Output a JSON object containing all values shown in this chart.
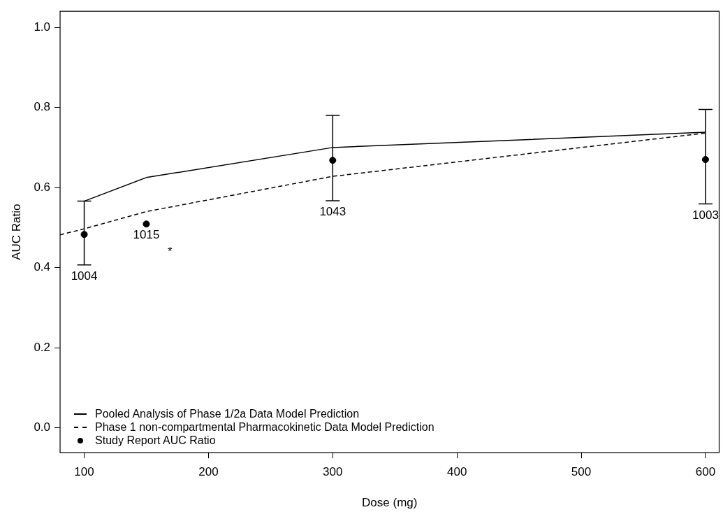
{
  "chart_data": {
    "type": "line",
    "xlabel": "Dose (mg)",
    "ylabel": "AUC Ratio",
    "xlim": [
      80.6,
      611
    ],
    "xticks": [
      100,
      200,
      300,
      400,
      500,
      600
    ],
    "ylim": [
      -0.062,
      1.04
    ],
    "yticks": [
      {
        "value": 0,
        "label": "0.0"
      },
      {
        "value": 0.2,
        "label": "0.2"
      },
      {
        "value": 0.4,
        "label": "0.4"
      },
      {
        "value": 0.6,
        "label": "0.6"
      },
      {
        "value": 0.8,
        "label": "0.8"
      },
      {
        "value": 1,
        "label": "1.0"
      }
    ],
    "grid": false,
    "legend": "bottom left",
    "series": [
      {
        "name": "Pooled Analysis of Phase 1/2a Data Model Prediction",
        "color": "#000000",
        "line_style": "solid",
        "marker": "none",
        "x": [
          100,
          150,
          300,
          600
        ],
        "values": [
          0.566,
          0.625,
          0.7,
          0.738
        ]
      },
      {
        "name": "Phase 1 non-compartmental Pharmacokinetic Data Model Prediction",
        "color": "#000000",
        "line_style": "dashed",
        "marker": "none",
        "x": [
          80.6,
          100,
          150,
          300,
          600
        ],
        "values": [
          0.482,
          0.497,
          0.54,
          0.628,
          0.736
        ]
      },
      {
        "name": "Study Report AUC Ratio",
        "type": "scatter",
        "color": "#000000",
        "marker": "circle",
        "x": [
          100,
          150,
          300,
          600
        ],
        "values": [
          0.483,
          0.509,
          0.668,
          0.67
        ],
        "errors": [
          [
            0.407,
            0.566
          ],
          null,
          [
            0.567,
            0.78
          ],
          [
            0.559,
            0.795
          ]
        ]
      }
    ],
    "annotations": [
      {
        "text": "1004",
        "x": 100,
        "y": 0.407
      },
      {
        "text": "1015",
        "x": 150,
        "y": 0.509
      },
      "*",
      {
        "text": "1043",
        "x": 300,
        "y": 0.567
      },
      {
        "text": "1003",
        "x": 600,
        "y": 0.559
      }
    ]
  }
}
